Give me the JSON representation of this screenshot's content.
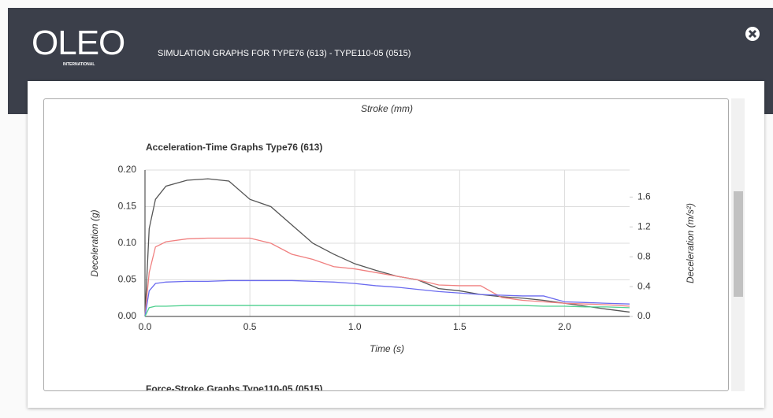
{
  "header": {
    "logo": "OLEO",
    "logo_subtitle": "INTERNATIONAL",
    "title": "SIMULATION GRAPHS FOR TYPE76 (613) - TYPE110-05 (0515)"
  },
  "previous_chart_axis_label": "Stroke (mm)",
  "next_chart_title": "Force-Stroke Graphs Type110-05 (0515)",
  "chart_data": {
    "type": "line",
    "title": "Acceleration-Time Graphs Type76 (613)",
    "x_label": "Time (s)",
    "y_label": "Deceleration (g)",
    "y2_label": "Deceleration (m/s²)",
    "x": [
      0,
      0.02,
      0.05,
      0.1,
      0.2,
      0.3,
      0.4,
      0.5,
      0.6,
      0.7,
      0.8,
      0.9,
      1.0,
      1.1,
      1.2,
      1.3,
      1.4,
      1.5,
      1.6,
      1.7,
      1.8,
      1.9,
      2.0,
      2.1,
      2.2,
      2.31
    ],
    "series": [
      {
        "color": "#555555",
        "values": [
          0,
          0.12,
          0.16,
          0.178,
          0.186,
          0.188,
          0.185,
          0.16,
          0.15,
          0.125,
          0.1,
          0.085,
          0.072,
          0.063,
          0.055,
          0.05,
          0.038,
          0.035,
          0.03,
          0.027,
          0.025,
          0.022,
          0.018,
          0.014,
          0.01,
          0.006
        ]
      },
      {
        "color": "#f08080",
        "values": [
          0,
          0.06,
          0.095,
          0.102,
          0.106,
          0.107,
          0.107,
          0.107,
          0.1,
          0.085,
          0.078,
          0.068,
          0.065,
          0.06,
          0.055,
          0.05,
          0.043,
          0.042,
          0.042,
          0.026,
          0.022,
          0.02,
          0.018,
          0.017,
          0.016,
          0.014
        ]
      },
      {
        "color": "#6b6bef",
        "values": [
          0,
          0.035,
          0.045,
          0.047,
          0.048,
          0.048,
          0.049,
          0.049,
          0.049,
          0.049,
          0.048,
          0.047,
          0.045,
          0.042,
          0.04,
          0.037,
          0.034,
          0.032,
          0.03,
          0.029,
          0.028,
          0.028,
          0.02,
          0.019,
          0.018,
          0.017
        ]
      },
      {
        "color": "#4fd08f",
        "values": [
          0,
          0.012,
          0.014,
          0.014,
          0.015,
          0.015,
          0.015,
          0.015,
          0.015,
          0.015,
          0.015,
          0.015,
          0.015,
          0.015,
          0.015,
          0.015,
          0.015,
          0.015,
          0.015,
          0.015,
          0.015,
          0.014,
          0.014,
          0.013,
          0.013,
          0.012
        ]
      }
    ],
    "xlim": [
      0,
      2.31
    ],
    "xticks": [
      {
        "value": 0,
        "label": "0.0"
      },
      0.5,
      {
        "value": 1,
        "label": "1.0"
      },
      1.5,
      {
        "value": 2,
        "label": "2.0"
      }
    ],
    "ylim": [
      0,
      0.2
    ],
    "yticks": [
      {
        "value": 0,
        "label": "0.00"
      },
      0.05,
      {
        "value": 0.1,
        "label": "0.10"
      },
      0.15,
      {
        "value": 0.2,
        "label": "0.20"
      }
    ],
    "y2lim": [
      0,
      1.962
    ],
    "y2ticks": [
      {
        "value": 0,
        "label": "0.0"
      },
      0.4,
      0.8,
      1.2,
      1.6
    ],
    "grid": true
  }
}
